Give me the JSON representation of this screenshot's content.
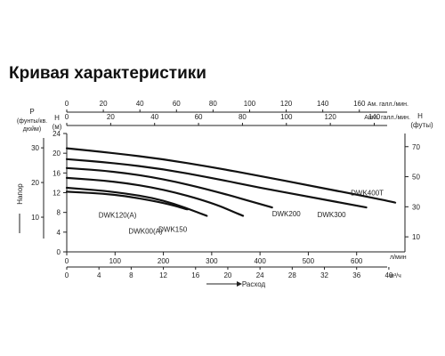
{
  "title": "Кривая характеристики",
  "chart_data": {
    "type": "line",
    "x": {
      "label": "Расход",
      "units": {
        "lpm": "л/мин",
        "m3h": "м³/ч"
      },
      "range_lpm": [
        0,
        700
      ],
      "ticks_lpm": [
        "0",
        "100",
        "200",
        "300",
        "400",
        "500",
        "600"
      ],
      "ticks_m3h": [
        "0",
        "4",
        "8",
        "12",
        "16",
        "20",
        "24",
        "28",
        "32",
        "36",
        "40"
      ],
      "ticks_us_gpm": [
        "0",
        "20",
        "40",
        "60",
        "80",
        "100",
        "120",
        "140",
        "160"
      ],
      "ticks_imp_gpm": [
        "0",
        "20",
        "40",
        "60",
        "80",
        "100",
        "120",
        "140"
      ],
      "us_gpm_label": "Ам. галл./мин.",
      "imp_gpm_label": "Англ. галл./мин."
    },
    "y": {
      "label": "Напор",
      "h_label": "H",
      "h_unit": "(м)",
      "range_m": [
        0,
        24
      ],
      "ticks_m": [
        "0",
        "4",
        "8",
        "12",
        "16",
        "20",
        "24"
      ],
      "p_label": "P",
      "p_unit": "(фунты/кв. дюйм)",
      "ticks_psi": [
        "10",
        "20",
        "30"
      ],
      "ft_label": "H",
      "ft_unit": "(футы)",
      "ticks_ft": [
        "10",
        "30",
        "50",
        "70"
      ]
    },
    "grid": false,
    "series": [
      {
        "name": "DWK120(A)",
        "points": [
          [
            0,
            12.2
          ],
          [
            100,
            11.7
          ],
          [
            200,
            10.0
          ],
          [
            250,
            8.6
          ]
        ]
      },
      {
        "name": "DWK00(A)",
        "points": [
          [
            0,
            13.0
          ],
          [
            100,
            12.2
          ],
          [
            200,
            10.6
          ],
          [
            290,
            7.3
          ]
        ]
      },
      {
        "name": "DWK150",
        "points": [
          [
            0,
            15.0
          ],
          [
            100,
            14.3
          ],
          [
            200,
            12.7
          ],
          [
            300,
            10.0
          ],
          [
            365,
            7.3
          ]
        ]
      },
      {
        "name": "DWK200",
        "points": [
          [
            0,
            17.0
          ],
          [
            100,
            16.3
          ],
          [
            200,
            14.8
          ],
          [
            300,
            12.5
          ],
          [
            425,
            9.0
          ]
        ]
      },
      {
        "name": "DWK300",
        "points": [
          [
            0,
            18.8
          ],
          [
            100,
            18.0
          ],
          [
            200,
            16.8
          ],
          [
            300,
            15.0
          ],
          [
            400,
            13.0
          ],
          [
            500,
            11.2
          ],
          [
            620,
            9.0
          ]
        ]
      },
      {
        "name": "DWK400T",
        "points": [
          [
            0,
            21.0
          ],
          [
            100,
            20.0
          ],
          [
            200,
            18.8
          ],
          [
            300,
            17.2
          ],
          [
            400,
            15.4
          ],
          [
            500,
            13.5
          ],
          [
            600,
            11.6
          ],
          [
            680,
            10.0
          ]
        ]
      }
    ]
  }
}
